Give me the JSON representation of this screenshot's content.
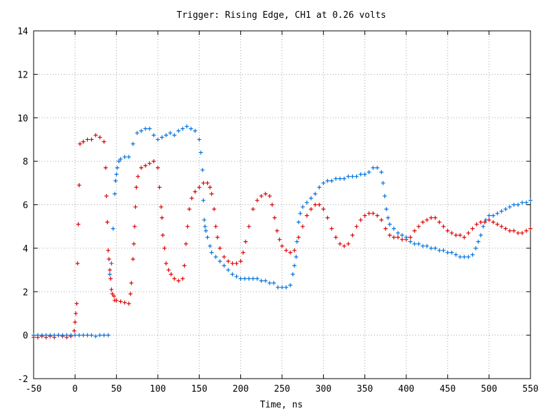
{
  "chart_data": {
    "type": "scatter",
    "title": "Trigger: Rising Edge, CH1 at 0.26 volts",
    "xlabel": "Time, ns",
    "ylabel": "",
    "xlim": [
      -50,
      550
    ],
    "ylim": [
      -2,
      14
    ],
    "x_ticks": [
      "-50",
      "0",
      "50",
      "100",
      "150",
      "200",
      "250",
      "300",
      "350",
      "400",
      "450",
      "500",
      "550"
    ],
    "y_ticks": [
      "-2",
      "0",
      "2",
      "4",
      "6",
      "8",
      "10",
      "12",
      "14"
    ],
    "grid": true,
    "marker": "+",
    "series": [
      {
        "color": "#dd0000",
        "points": [
          [
            -50,
            -0.1
          ],
          [
            -45,
            -0.1
          ],
          [
            -40,
            -0.05
          ],
          [
            -35,
            -0.1
          ],
          [
            -30,
            -0.05
          ],
          [
            -25,
            -0.1
          ],
          [
            -20,
            0.0
          ],
          [
            -15,
            -0.05
          ],
          [
            -10,
            -0.1
          ],
          [
            -5,
            -0.05
          ],
          [
            -1,
            0.2
          ],
          [
            0,
            0.6
          ],
          [
            1,
            1.0
          ],
          [
            2,
            1.45
          ],
          [
            3,
            3.3
          ],
          [
            4,
            5.1
          ],
          [
            5,
            6.9
          ],
          [
            6,
            8.8
          ],
          [
            10,
            8.9
          ],
          [
            15,
            9.0
          ],
          [
            20,
            9.0
          ],
          [
            25,
            9.2
          ],
          [
            30,
            9.1
          ],
          [
            35,
            8.9
          ],
          [
            37,
            7.7
          ],
          [
            38,
            6.4
          ],
          [
            39,
            5.2
          ],
          [
            40,
            3.9
          ],
          [
            41,
            3.5
          ],
          [
            42,
            3.0
          ],
          [
            43,
            2.6
          ],
          [
            44,
            2.1
          ],
          [
            45,
            1.9
          ],
          [
            47,
            1.8
          ],
          [
            48,
            1.6
          ],
          [
            50,
            1.6
          ],
          [
            55,
            1.55
          ],
          [
            60,
            1.5
          ],
          [
            65,
            1.45
          ],
          [
            67,
            1.9
          ],
          [
            68,
            2.4
          ],
          [
            70,
            3.5
          ],
          [
            71,
            4.2
          ],
          [
            72,
            5.0
          ],
          [
            73,
            5.9
          ],
          [
            74,
            6.8
          ],
          [
            76,
            7.3
          ],
          [
            80,
            7.7
          ],
          [
            85,
            7.8
          ],
          [
            90,
            7.9
          ],
          [
            95,
            8.0
          ],
          [
            100,
            7.7
          ],
          [
            102,
            6.8
          ],
          [
            104,
            5.9
          ],
          [
            105,
            5.4
          ],
          [
            106,
            4.6
          ],
          [
            108,
            4.0
          ],
          [
            110,
            3.3
          ],
          [
            113,
            3.0
          ],
          [
            116,
            2.8
          ],
          [
            120,
            2.6
          ],
          [
            125,
            2.5
          ],
          [
            130,
            2.6
          ],
          [
            132,
            3.2
          ],
          [
            134,
            4.2
          ],
          [
            136,
            5.0
          ],
          [
            138,
            5.8
          ],
          [
            141,
            6.3
          ],
          [
            145,
            6.6
          ],
          [
            150,
            6.8
          ],
          [
            155,
            7.0
          ],
          [
            160,
            7.0
          ],
          [
            163,
            6.8
          ],
          [
            165,
            6.5
          ],
          [
            168,
            5.8
          ],
          [
            170,
            5.0
          ],
          [
            172,
            4.5
          ],
          [
            175,
            4.0
          ],
          [
            180,
            3.6
          ],
          [
            185,
            3.4
          ],
          [
            190,
            3.3
          ],
          [
            195,
            3.3
          ],
          [
            200,
            3.4
          ],
          [
            203,
            3.8
          ],
          [
            206,
            4.3
          ],
          [
            210,
            5.0
          ],
          [
            215,
            5.8
          ],
          [
            220,
            6.2
          ],
          [
            225,
            6.4
          ],
          [
            230,
            6.5
          ],
          [
            235,
            6.4
          ],
          [
            238,
            6.0
          ],
          [
            241,
            5.4
          ],
          [
            244,
            4.8
          ],
          [
            247,
            4.4
          ],
          [
            250,
            4.1
          ],
          [
            255,
            3.9
          ],
          [
            260,
            3.8
          ],
          [
            265,
            3.9
          ],
          [
            270,
            4.5
          ],
          [
            275,
            5.0
          ],
          [
            280,
            5.5
          ],
          [
            285,
            5.8
          ],
          [
            290,
            6.0
          ],
          [
            295,
            6.0
          ],
          [
            300,
            5.8
          ],
          [
            305,
            5.4
          ],
          [
            310,
            4.9
          ],
          [
            315,
            4.5
          ],
          [
            320,
            4.2
          ],
          [
            325,
            4.1
          ],
          [
            330,
            4.2
          ],
          [
            335,
            4.6
          ],
          [
            340,
            5.0
          ],
          [
            345,
            5.3
          ],
          [
            350,
            5.5
          ],
          [
            355,
            5.6
          ],
          [
            360,
            5.6
          ],
          [
            365,
            5.5
          ],
          [
            370,
            5.3
          ],
          [
            375,
            4.9
          ],
          [
            380,
            4.6
          ],
          [
            385,
            4.5
          ],
          [
            390,
            4.5
          ],
          [
            395,
            4.4
          ],
          [
            400,
            4.4
          ],
          [
            405,
            4.5
          ],
          [
            410,
            4.8
          ],
          [
            415,
            5.0
          ],
          [
            420,
            5.2
          ],
          [
            425,
            5.3
          ],
          [
            430,
            5.4
          ],
          [
            435,
            5.4
          ],
          [
            440,
            5.2
          ],
          [
            445,
            5.0
          ],
          [
            450,
            4.8
          ],
          [
            455,
            4.7
          ],
          [
            460,
            4.6
          ],
          [
            465,
            4.6
          ],
          [
            470,
            4.5
          ],
          [
            475,
            4.7
          ],
          [
            480,
            4.9
          ],
          [
            485,
            5.1
          ],
          [
            490,
            5.2
          ],
          [
            495,
            5.2
          ],
          [
            500,
            5.3
          ],
          [
            505,
            5.2
          ],
          [
            510,
            5.1
          ],
          [
            515,
            5.0
          ],
          [
            520,
            4.9
          ],
          [
            525,
            4.8
          ],
          [
            530,
            4.8
          ],
          [
            535,
            4.7
          ],
          [
            540,
            4.7
          ],
          [
            545,
            4.8
          ],
          [
            550,
            4.9
          ]
        ]
      },
      {
        "color": "#0070dd",
        "points": [
          [
            -50,
            0.0
          ],
          [
            -45,
            0.0
          ],
          [
            -40,
            0.0
          ],
          [
            -35,
            0.0
          ],
          [
            -30,
            0.0
          ],
          [
            -25,
            0.0
          ],
          [
            -20,
            0.0
          ],
          [
            -15,
            0.0
          ],
          [
            -10,
            0.0
          ],
          [
            -5,
            0.0
          ],
          [
            0,
            0.0
          ],
          [
            5,
            0.0
          ],
          [
            10,
            0.0
          ],
          [
            15,
            0.0
          ],
          [
            20,
            0.0
          ],
          [
            25,
            -0.05
          ],
          [
            30,
            0.0
          ],
          [
            35,
            0.0
          ],
          [
            40,
            0.0
          ],
          [
            42,
            2.8
          ],
          [
            44,
            3.3
          ],
          [
            46,
            4.9
          ],
          [
            48,
            6.5
          ],
          [
            49,
            7.1
          ],
          [
            50,
            7.4
          ],
          [
            51,
            7.7
          ],
          [
            53,
            8.0
          ],
          [
            55,
            8.1
          ],
          [
            60,
            8.2
          ],
          [
            65,
            8.2
          ],
          [
            70,
            8.8
          ],
          [
            75,
            9.3
          ],
          [
            80,
            9.4
          ],
          [
            85,
            9.5
          ],
          [
            90,
            9.5
          ],
          [
            95,
            9.2
          ],
          [
            100,
            9.0
          ],
          [
            105,
            9.1
          ],
          [
            110,
            9.2
          ],
          [
            115,
            9.3
          ],
          [
            120,
            9.2
          ],
          [
            125,
            9.4
          ],
          [
            130,
            9.5
          ],
          [
            135,
            9.6
          ],
          [
            140,
            9.5
          ],
          [
            145,
            9.4
          ],
          [
            150,
            9.0
          ],
          [
            152,
            8.4
          ],
          [
            154,
            7.6
          ],
          [
            155,
            6.2
          ],
          [
            156,
            5.3
          ],
          [
            157,
            5.0
          ],
          [
            158,
            4.8
          ],
          [
            160,
            4.5
          ],
          [
            163,
            4.1
          ],
          [
            165,
            3.8
          ],
          [
            170,
            3.6
          ],
          [
            175,
            3.4
          ],
          [
            180,
            3.2
          ],
          [
            185,
            3.0
          ],
          [
            190,
            2.8
          ],
          [
            195,
            2.7
          ],
          [
            200,
            2.6
          ],
          [
            205,
            2.6
          ],
          [
            210,
            2.6
          ],
          [
            215,
            2.6
          ],
          [
            220,
            2.6
          ],
          [
            225,
            2.5
          ],
          [
            230,
            2.5
          ],
          [
            235,
            2.4
          ],
          [
            240,
            2.4
          ],
          [
            245,
            2.2
          ],
          [
            250,
            2.2
          ],
          [
            255,
            2.2
          ],
          [
            260,
            2.3
          ],
          [
            263,
            2.8
          ],
          [
            265,
            3.2
          ],
          [
            267,
            3.6
          ],
          [
            268,
            4.3
          ],
          [
            270,
            5.2
          ],
          [
            272,
            5.6
          ],
          [
            275,
            5.9
          ],
          [
            280,
            6.1
          ],
          [
            285,
            6.3
          ],
          [
            290,
            6.5
          ],
          [
            295,
            6.8
          ],
          [
            300,
            7.0
          ],
          [
            305,
            7.1
          ],
          [
            310,
            7.1
          ],
          [
            315,
            7.2
          ],
          [
            320,
            7.2
          ],
          [
            325,
            7.2
          ],
          [
            330,
            7.3
          ],
          [
            335,
            7.3
          ],
          [
            340,
            7.3
          ],
          [
            345,
            7.4
          ],
          [
            350,
            7.4
          ],
          [
            355,
            7.5
          ],
          [
            360,
            7.7
          ],
          [
            365,
            7.7
          ],
          [
            370,
            7.5
          ],
          [
            372,
            7.0
          ],
          [
            374,
            6.4
          ],
          [
            376,
            5.8
          ],
          [
            378,
            5.4
          ],
          [
            380,
            5.1
          ],
          [
            385,
            4.9
          ],
          [
            390,
            4.7
          ],
          [
            395,
            4.6
          ],
          [
            400,
            4.5
          ],
          [
            405,
            4.3
          ],
          [
            410,
            4.2
          ],
          [
            415,
            4.2
          ],
          [
            420,
            4.1
          ],
          [
            425,
            4.1
          ],
          [
            430,
            4.0
          ],
          [
            435,
            4.0
          ],
          [
            440,
            3.9
          ],
          [
            445,
            3.9
          ],
          [
            450,
            3.8
          ],
          [
            455,
            3.8
          ],
          [
            460,
            3.7
          ],
          [
            465,
            3.6
          ],
          [
            470,
            3.6
          ],
          [
            475,
            3.6
          ],
          [
            480,
            3.7
          ],
          [
            484,
            4.0
          ],
          [
            487,
            4.3
          ],
          [
            490,
            4.6
          ],
          [
            493,
            5.0
          ],
          [
            496,
            5.3
          ],
          [
            500,
            5.5
          ],
          [
            505,
            5.5
          ],
          [
            510,
            5.6
          ],
          [
            515,
            5.7
          ],
          [
            520,
            5.8
          ],
          [
            525,
            5.9
          ],
          [
            530,
            6.0
          ],
          [
            535,
            6.0
          ],
          [
            540,
            6.1
          ],
          [
            545,
            6.1
          ],
          [
            550,
            6.2
          ]
        ]
      }
    ]
  }
}
